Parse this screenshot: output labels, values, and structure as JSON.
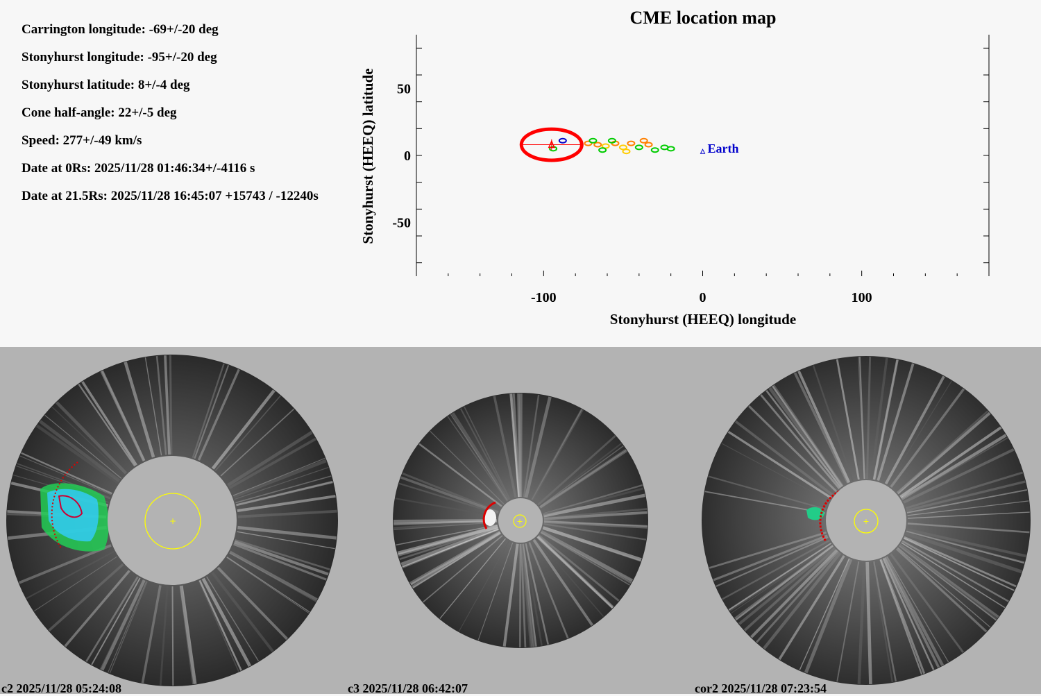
{
  "params": [
    "Carrington longitude: -69+/-20 deg",
    "Stonyhurst longitude: -95+/-20 deg",
    "Stonyhurst latitude: 8+/-4 deg",
    "Cone half-angle: 22+/-5 deg",
    "Speed: 277+/-49 km/s",
    "Date at 0Rs: 2025/11/28 01:46:34+/-4116 s",
    "Date at 21.5Rs: 2025/11/28 16:45:07 +15743 / -12240s"
  ],
  "chart_data": {
    "type": "scatter",
    "title": "CME location map",
    "xlabel": "Stonyhurst (HEEQ) longitude",
    "ylabel": "Stonyhurst (HEEQ) latitude",
    "xlim": [
      -180,
      180
    ],
    "ylim": [
      -90,
      90
    ],
    "xticks": [
      -100,
      0,
      100
    ],
    "yticks": [
      50,
      0,
      -50
    ],
    "cme": {
      "longitude": -95,
      "latitude": 8,
      "longitude_err": 20,
      "latitude_err": 4,
      "color": "#ff0000"
    },
    "earth": {
      "label": "Earth",
      "longitude": 0,
      "latitude": 3,
      "color": "#0000cc"
    },
    "dots": [
      {
        "lon": -72,
        "lat": 9,
        "color": "#ff8000"
      },
      {
        "lon": -66,
        "lat": 8,
        "color": "#ff8000"
      },
      {
        "lon": -61,
        "lat": 7,
        "color": "#ffcc00"
      },
      {
        "lon": -55,
        "lat": 9,
        "color": "#ff8000"
      },
      {
        "lon": -50,
        "lat": 6,
        "color": "#ffcc00"
      },
      {
        "lon": -45,
        "lat": 9,
        "color": "#ff8000"
      },
      {
        "lon": -40,
        "lat": 6,
        "color": "#00cc00"
      },
      {
        "lon": -34,
        "lat": 8,
        "color": "#ff8000"
      },
      {
        "lon": -30,
        "lat": 4,
        "color": "#00cc00"
      },
      {
        "lon": -24,
        "lat": 6,
        "color": "#00cc00"
      },
      {
        "lon": -20,
        "lat": 5,
        "color": "#00cc00"
      },
      {
        "lon": -69,
        "lat": 11,
        "color": "#00cc00"
      },
      {
        "lon": -63,
        "lat": 4,
        "color": "#00cc00"
      },
      {
        "lon": -57,
        "lat": 11,
        "color": "#00cc00"
      },
      {
        "lon": -48,
        "lat": 3,
        "color": "#ffcc00"
      },
      {
        "lon": -37,
        "lat": 11,
        "color": "#ff8000"
      },
      {
        "lon": -94,
        "lat": 5,
        "color": "#00cc00"
      },
      {
        "lon": -88,
        "lat": 11,
        "color": "#0000cc"
      }
    ]
  },
  "panels": [
    {
      "caption": "c2 2025/11/28 05:24:08"
    },
    {
      "caption": "c3 2025/11/28 06:42:07"
    },
    {
      "caption": "cor2 2025/11/28 07:23:54"
    }
  ]
}
